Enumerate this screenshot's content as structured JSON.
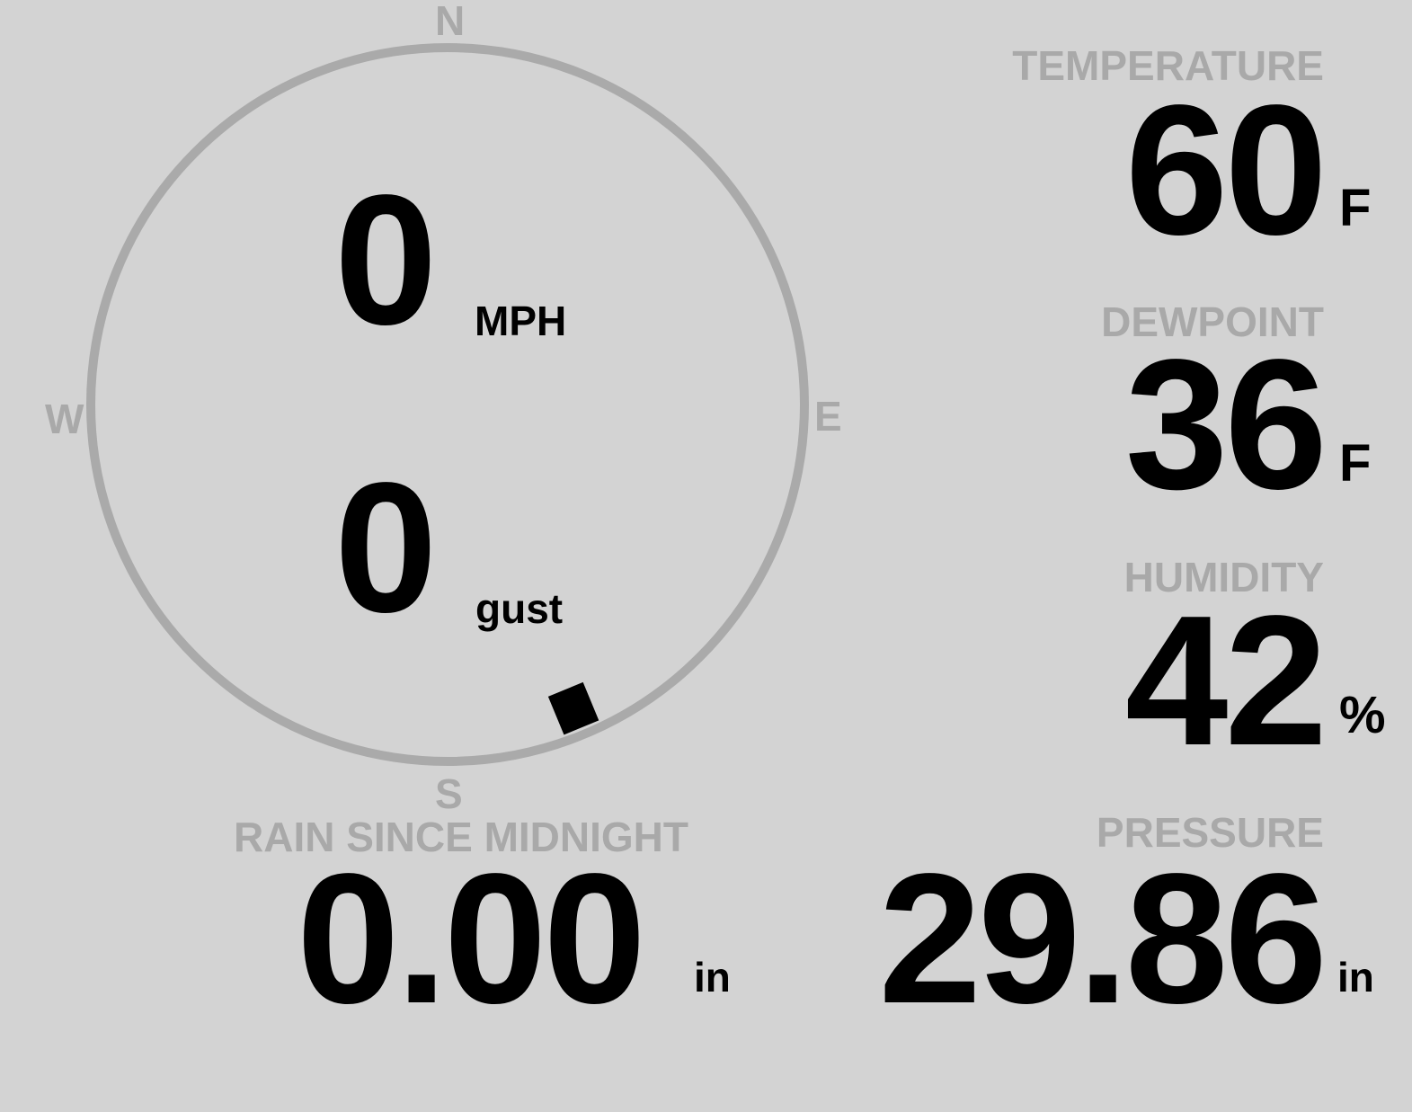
{
  "colors": {
    "background": "#d3d3d3",
    "label": "#a9a9a9",
    "value": "#000000",
    "compass_ring": "#aaaaaa"
  },
  "wind": {
    "compass": {
      "n": "N",
      "e": "E",
      "s": "S",
      "w": "W"
    },
    "speed": "0",
    "speed_unit": "MPH",
    "gust": "0",
    "gust_unit": "gust",
    "direction_deg": 157.5
  },
  "temperature": {
    "label": "TEMPERATURE",
    "value": "60",
    "unit": "F"
  },
  "dewpoint": {
    "label": "DEWPOINT",
    "value": "36",
    "unit": "F"
  },
  "humidity": {
    "label": "HUMIDITY",
    "value": "42",
    "unit": "%"
  },
  "pressure": {
    "label": "PRESSURE",
    "value": "29.86",
    "unit": "in"
  },
  "rain": {
    "label": "RAIN SINCE MIDNIGHT",
    "value": "0.00",
    "unit": "in"
  }
}
